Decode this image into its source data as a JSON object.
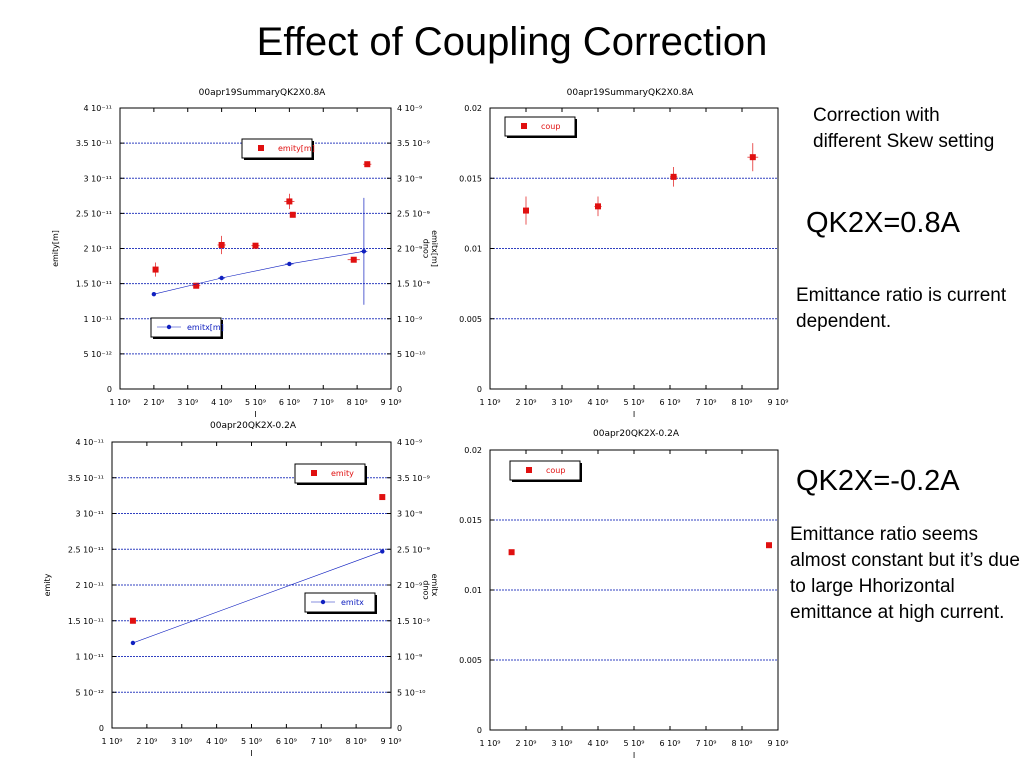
{
  "slide": {
    "title": "Effect of Coupling Correction"
  },
  "notes": {
    "intro": "Correction with different Skew setting",
    "case1": "QK2X=0.8A",
    "case1_text": "Emittance ratio is current dependent.",
    "case2": "QK2X=-0.2A",
    "case2_text": "Emittance ratio seems almost constant but it’s due to large Hhorizontal emittance at high current."
  },
  "chart_data": [
    {
      "type": "scatter",
      "title": "00apr19SummaryQK2X0.8A",
      "xlabel": "I",
      "ylabel": "emity[m]",
      "y2label": "emitx[m]",
      "xlim": [
        1000000000.0,
        9000000000.0
      ],
      "ylim": [
        0,
        4e-11
      ],
      "y2lim": [
        0,
        4e-09
      ],
      "x_ticks": [
        "1 10⁹",
        "2 10⁹",
        "3 10⁹",
        "4 10⁹",
        "5 10⁹",
        "6 10⁹",
        "7 10⁹",
        "8 10⁹",
        "9 10⁹"
      ],
      "y_ticks": [
        "0",
        "5 10⁻¹²",
        "1 10⁻¹¹",
        "1.5 10⁻¹¹",
        "2 10⁻¹¹",
        "2.5 10⁻¹¹",
        "3 10⁻¹¹",
        "3.5 10⁻¹¹",
        "4 10⁻¹¹"
      ],
      "y2_ticks": [
        "0",
        "5 10⁻¹⁰",
        "1 10⁻⁹",
        "1.5 10⁻⁹",
        "2 10⁻⁹",
        "2.5 10⁻⁹",
        "3 10⁻⁹",
        "3.5 10⁻⁹",
        "4 10⁻⁹"
      ],
      "grid": true,
      "legend": "inside",
      "series": [
        {
          "name": "emity[m]",
          "axis": "left",
          "marker": "square",
          "color": "#e01010",
          "line": false,
          "x": [
            2050000000.0,
            3250000000.0,
            4000000000.0,
            5000000000.0,
            6000000000.0,
            6100000000.0,
            7900000000.0,
            8300000000.0
          ],
          "y": [
            1.7e-11,
            1.47e-11,
            2.05e-11,
            2.04e-11,
            2.67e-11,
            2.48e-11,
            1.84e-11,
            3.2e-11
          ],
          "yerr": [
            1e-12,
            2e-13,
            1.3e-12,
            3e-13,
            1.1e-12,
            2e-13,
            2e-13,
            4e-13
          ],
          "xerr": [
            50000000.0,
            120000000.0,
            120000000.0,
            120000000.0,
            150000000.0,
            60000000.0,
            180000000.0,
            120000000.0
          ]
        },
        {
          "name": "emitx[m]",
          "axis": "right",
          "marker": "circle",
          "color": "#1020c0",
          "line": true,
          "x": [
            2000000000.0,
            4000000000.0,
            6000000000.0,
            8200000000.0
          ],
          "y": [
            1.35e-09,
            1.58e-09,
            1.78e-09,
            1.96e-09
          ],
          "yerr": [
            0,
            0,
            0,
            7.6e-10
          ],
          "xerr": [
            50000000.0,
            100000000.0,
            120000000.0,
            100000000.0
          ]
        }
      ]
    },
    {
      "type": "scatter",
      "title": "00apr19SummaryQK2X0.8A",
      "xlabel": "I",
      "ylabel": "coup",
      "xlim": [
        1000000000.0,
        9000000000.0
      ],
      "ylim": [
        0,
        0.02
      ],
      "x_ticks": [
        "1 10⁹",
        "2 10⁹",
        "3 10⁹",
        "4 10⁹",
        "5 10⁹",
        "6 10⁹",
        "7 10⁹",
        "8 10⁹",
        "9 10⁹"
      ],
      "y_ticks": [
        "0",
        "0.005",
        "0.01",
        "0.015",
        "0.02"
      ],
      "grid": true,
      "legend": "inside",
      "series": [
        {
          "name": "coup",
          "axis": "left",
          "marker": "square",
          "color": "#e01010",
          "line": false,
          "x": [
            2000000000.0,
            4000000000.0,
            6100000000.0,
            8300000000.0
          ],
          "y": [
            0.0127,
            0.013,
            0.0151,
            0.0165
          ],
          "yerr": [
            0.001,
            0.0007,
            0.0007,
            0.001
          ],
          "xerr": [
            50000000.0,
            100000000.0,
            100000000.0,
            150000000.0
          ]
        }
      ]
    },
    {
      "type": "scatter",
      "title": "00apr20QK2X-0.2A",
      "xlabel": "I",
      "ylabel": "emity",
      "y2label": "emitx",
      "xlim": [
        1000000000.0,
        9000000000.0
      ],
      "ylim": [
        0,
        4e-11
      ],
      "y2lim": [
        0,
        4e-09
      ],
      "x_ticks": [
        "1 10⁹",
        "2 10⁹",
        "3 10⁹",
        "4 10⁹",
        "5 10⁹",
        "6 10⁹",
        "7 10⁹",
        "8 10⁹",
        "9 10⁹"
      ],
      "y_ticks": [
        "0",
        "5 10⁻¹²",
        "1 10⁻¹¹",
        "1.5 10⁻¹¹",
        "2 10⁻¹¹",
        "2.5 10⁻¹¹",
        "3 10⁻¹¹",
        "3.5 10⁻¹¹",
        "4 10⁻¹¹"
      ],
      "y2_ticks": [
        "0",
        "5 10⁻¹⁰",
        "1 10⁻⁹",
        "1.5 10⁻⁹",
        "2 10⁻⁹",
        "2.5 10⁻⁹",
        "3 10⁻⁹",
        "3.5 10⁻⁹",
        "4 10⁻⁹"
      ],
      "grid": true,
      "legend": "inside",
      "series": [
        {
          "name": "emity",
          "axis": "left",
          "marker": "square",
          "color": "#e01010",
          "line": false,
          "x": [
            1600000000.0,
            8750000000.0
          ],
          "y": [
            1.5e-11,
            3.23e-11
          ],
          "yerr": [
            0,
            0
          ],
          "xerr": [
            30000000.0,
            50000000.0
          ]
        },
        {
          "name": "emitx",
          "axis": "right",
          "marker": "circle",
          "color": "#1020c0",
          "line": true,
          "x": [
            1600000000.0,
            8750000000.0
          ],
          "y": [
            1.19e-09,
            2.47e-09
          ],
          "yerr": [
            0,
            0
          ],
          "xerr": [
            0,
            0
          ]
        }
      ]
    },
    {
      "type": "scatter",
      "title": "00apr20QK2X-0.2A",
      "xlabel": "I",
      "ylabel": "coup",
      "xlim": [
        1000000000.0,
        9000000000.0
      ],
      "ylim": [
        0,
        0.02
      ],
      "x_ticks": [
        "1 10⁹",
        "2 10⁹",
        "3 10⁹",
        "4 10⁹",
        "5 10⁹",
        "6 10⁹",
        "7 10⁹",
        "8 10⁹",
        "9 10⁹"
      ],
      "y_ticks": [
        "0",
        "0.005",
        "0.01",
        "0.015",
        "0.02"
      ],
      "grid": true,
      "legend": "inside",
      "series": [
        {
          "name": "coup",
          "axis": "left",
          "marker": "square",
          "color": "#e01010",
          "line": false,
          "x": [
            1600000000.0,
            8750000000.0
          ],
          "y": [
            0.0127,
            0.0132
          ],
          "yerr": [
            0,
            0
          ],
          "xerr": [
            0,
            0
          ]
        }
      ]
    }
  ]
}
